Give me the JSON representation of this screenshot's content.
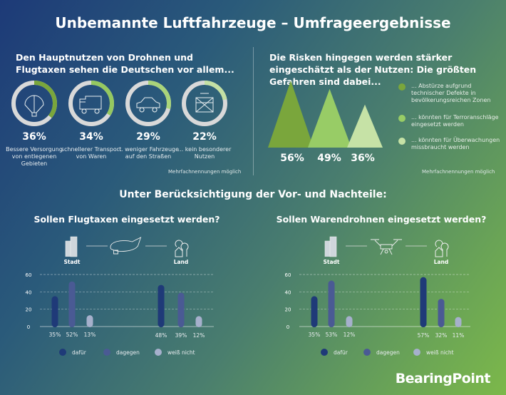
{
  "title": "Unbemannte Luftfahrzeuge – Umfrageergebnisse",
  "benefits": {
    "heading": "Den Hauptnutzen von Drohnen und Flugtaxen sehen die Deutschen vor allem...",
    "items": [
      {
        "icon": "parachute-icon",
        "value": 36,
        "pct": "36%",
        "label": "Bessere Versorgung von entlegenen Gebieten",
        "color": "#7aa63c"
      },
      {
        "icon": "truck-icon",
        "value": 34,
        "pct": "34%",
        "label": "schnellerer Transport von Waren",
        "color": "#95c860"
      },
      {
        "icon": "car-icon",
        "value": 29,
        "pct": "29%",
        "label": "... weniger Fahrzeuge auf den Straßen",
        "color": "#a9d47a"
      },
      {
        "icon": "crossed-box-icon",
        "value": 22,
        "pct": "22%",
        "label": "... kein besonderer Nutzen",
        "color": "#c4e0a4"
      }
    ],
    "note": "Mehrfachnennungen möglich"
  },
  "risks": {
    "heading": "Die Risken hingegen werden stärker eingeschätzt als der Nutzen: Die größten Gefahren sind dabei...",
    "items": [
      {
        "value": 56,
        "pct": "56%",
        "label": "... Abstürze aufgrund technischer Defekte in bevölkerungsreichen Zonen",
        "color": "#7aa63c"
      },
      {
        "value": 49,
        "pct": "49%",
        "label": "... könnten für Terroranschläge eingesetzt werden",
        "color": "#98cc66"
      },
      {
        "value": 36,
        "pct": "36%",
        "label": "... könnten für Überwachungen missbraucht werden",
        "color": "#c6e2a6"
      }
    ],
    "note": "Mehrfachnennungen möglich"
  },
  "section_heading": "Unter Berücksichtigung der Vor- und Nachteile:",
  "brand": "BearingPoint",
  "chart_data": [
    {
      "type": "bar",
      "title": "Sollen Flugtaxen eingesetzt werden?",
      "vehicle_icon": "air-taxi-icon",
      "categories": [
        "Stadt",
        "Land"
      ],
      "ylim": [
        0,
        60
      ],
      "yticks": [
        0,
        20,
        40,
        60
      ],
      "grid": true,
      "series": [
        {
          "name": "dafür",
          "values": [
            35,
            48
          ],
          "labels": [
            "35%",
            "48%"
          ],
          "color": "#1f3a78"
        },
        {
          "name": "dagegen",
          "values": [
            52,
            39
          ],
          "labels": [
            "52%",
            "39%"
          ],
          "color": "#4a5a94"
        },
        {
          "name": "weiß nicht",
          "values": [
            13,
            12
          ],
          "labels": [
            "13%",
            "12%"
          ],
          "color": "#a6b0cc"
        }
      ],
      "legend": "bottom"
    },
    {
      "type": "bar",
      "title": "Sollen Warendrohnen eingesetzt werden?",
      "vehicle_icon": "drone-icon",
      "categories": [
        "Stadt",
        "Land"
      ],
      "ylim": [
        0,
        60
      ],
      "yticks": [
        0,
        20,
        40,
        60
      ],
      "grid": true,
      "series": [
        {
          "name": "dafür",
          "values": [
            35,
            57
          ],
          "labels": [
            "35%",
            "57%"
          ],
          "color": "#1f3a78"
        },
        {
          "name": "dagegen",
          "values": [
            53,
            32
          ],
          "labels": [
            "53%",
            "32%"
          ],
          "color": "#4a5a94"
        },
        {
          "name": "weiß nicht",
          "values": [
            12,
            11
          ],
          "labels": [
            "12%",
            "11%"
          ],
          "color": "#a6b0cc"
        }
      ],
      "legend": "bottom"
    }
  ]
}
